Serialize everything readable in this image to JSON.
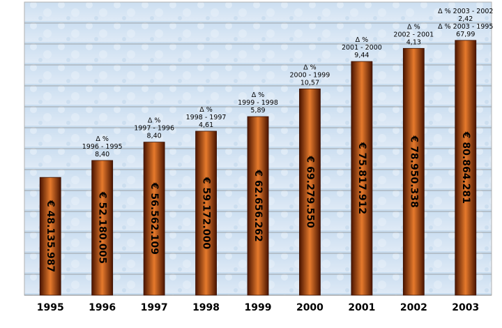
{
  "chart_data": {
    "type": "bar",
    "title": "",
    "xlabel": "",
    "ylabel": "",
    "categories": [
      "1995",
      "1996",
      "1997",
      "1998",
      "1999",
      "2000",
      "2001",
      "2002",
      "2003"
    ],
    "values": [
      48135987,
      52180005,
      56562109,
      59172000,
      62656262,
      69279550,
      75817912,
      78950338,
      80864281
    ],
    "value_labels": [
      "€ 48.135.987",
      "€ 52.180.005",
      "€ 56.562.109",
      "€ 59.172.000",
      "€ 62.656.262",
      "€ 69.279.550",
      "€ 75.817.912",
      "€ 78.950.338",
      "€ 80.864.281"
    ],
    "ylim": [
      20000000,
      90000000
    ],
    "grid": true,
    "colors": {
      "bar_edge": "#5a1a00",
      "bar_center": "#e8782a",
      "bar_dark": "#6b2200",
      "plot_bg": "#d6e6f4",
      "grid": "#8c8c8c"
    },
    "annotations": [
      null,
      [
        "Δ %",
        "1996 - 1995",
        "8,40"
      ],
      [
        "Δ %",
        "1997 - 1996",
        "8,40"
      ],
      [
        "Δ %",
        "1998 - 1997",
        "4,61"
      ],
      [
        "Δ %",
        "1999 - 1998",
        "5,89"
      ],
      [
        "Δ %",
        "2000 - 1999",
        "10,57"
      ],
      [
        "Δ %",
        "2001 - 2000",
        "9,44"
      ],
      [
        "Δ %",
        "2002 - 2001",
        "4,13"
      ],
      [
        "Δ % 2003 - 2002",
        "2,42",
        "Δ % 2003 - 1995",
        "67,99"
      ]
    ]
  }
}
